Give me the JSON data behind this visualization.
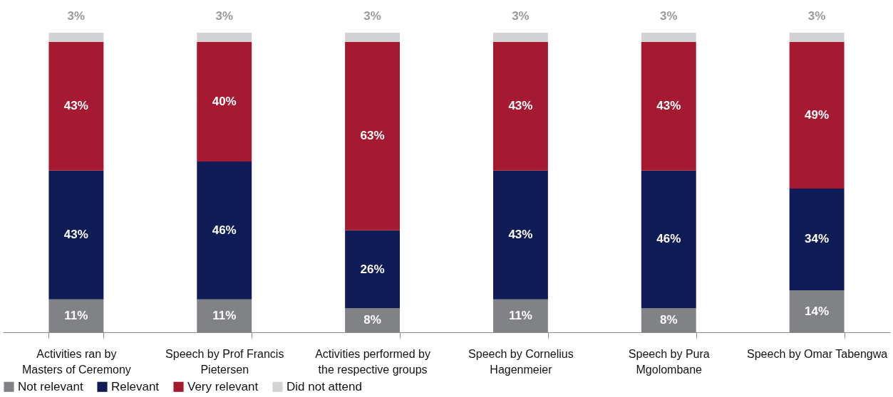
{
  "chart_data": {
    "type": "bar",
    "stacked": true,
    "legend": "bottom",
    "categories": [
      "Activities ran by Masters of Ceremony",
      "Speech by Prof Francis Pietersen",
      "Activities performed by the respective groups",
      "Speech by Cornelius Hagenmeier",
      "Speech by Pura Mgolombane",
      "Speech by Omar Tabengwa"
    ],
    "series": [
      {
        "name": "Not relevant",
        "color": "#808285",
        "values": [
          11,
          11,
          8,
          11,
          8,
          14
        ],
        "value_labels": [
          "11%",
          "11%",
          "8%",
          "11%",
          "8%",
          "14%"
        ]
      },
      {
        "name": "Relevant",
        "color": "#0f1c56",
        "values": [
          43,
          46,
          26,
          43,
          46,
          34
        ],
        "value_labels": [
          "43%",
          "46%",
          "26%",
          "43%",
          "46%",
          "34%"
        ]
      },
      {
        "name": "Very relevant",
        "color": "#a51931",
        "values": [
          43,
          40,
          63,
          43,
          43,
          49
        ],
        "value_labels": [
          "43%",
          "40%",
          "63%",
          "43%",
          "43%",
          "49%"
        ]
      },
      {
        "name": "Did not attend",
        "color": "#d1d3d4",
        "values": [
          3,
          3,
          3,
          3,
          3,
          3
        ],
        "value_labels": [
          "3%",
          "3%",
          "3%",
          "3%",
          "3%",
          "3%"
        ]
      }
    ]
  }
}
